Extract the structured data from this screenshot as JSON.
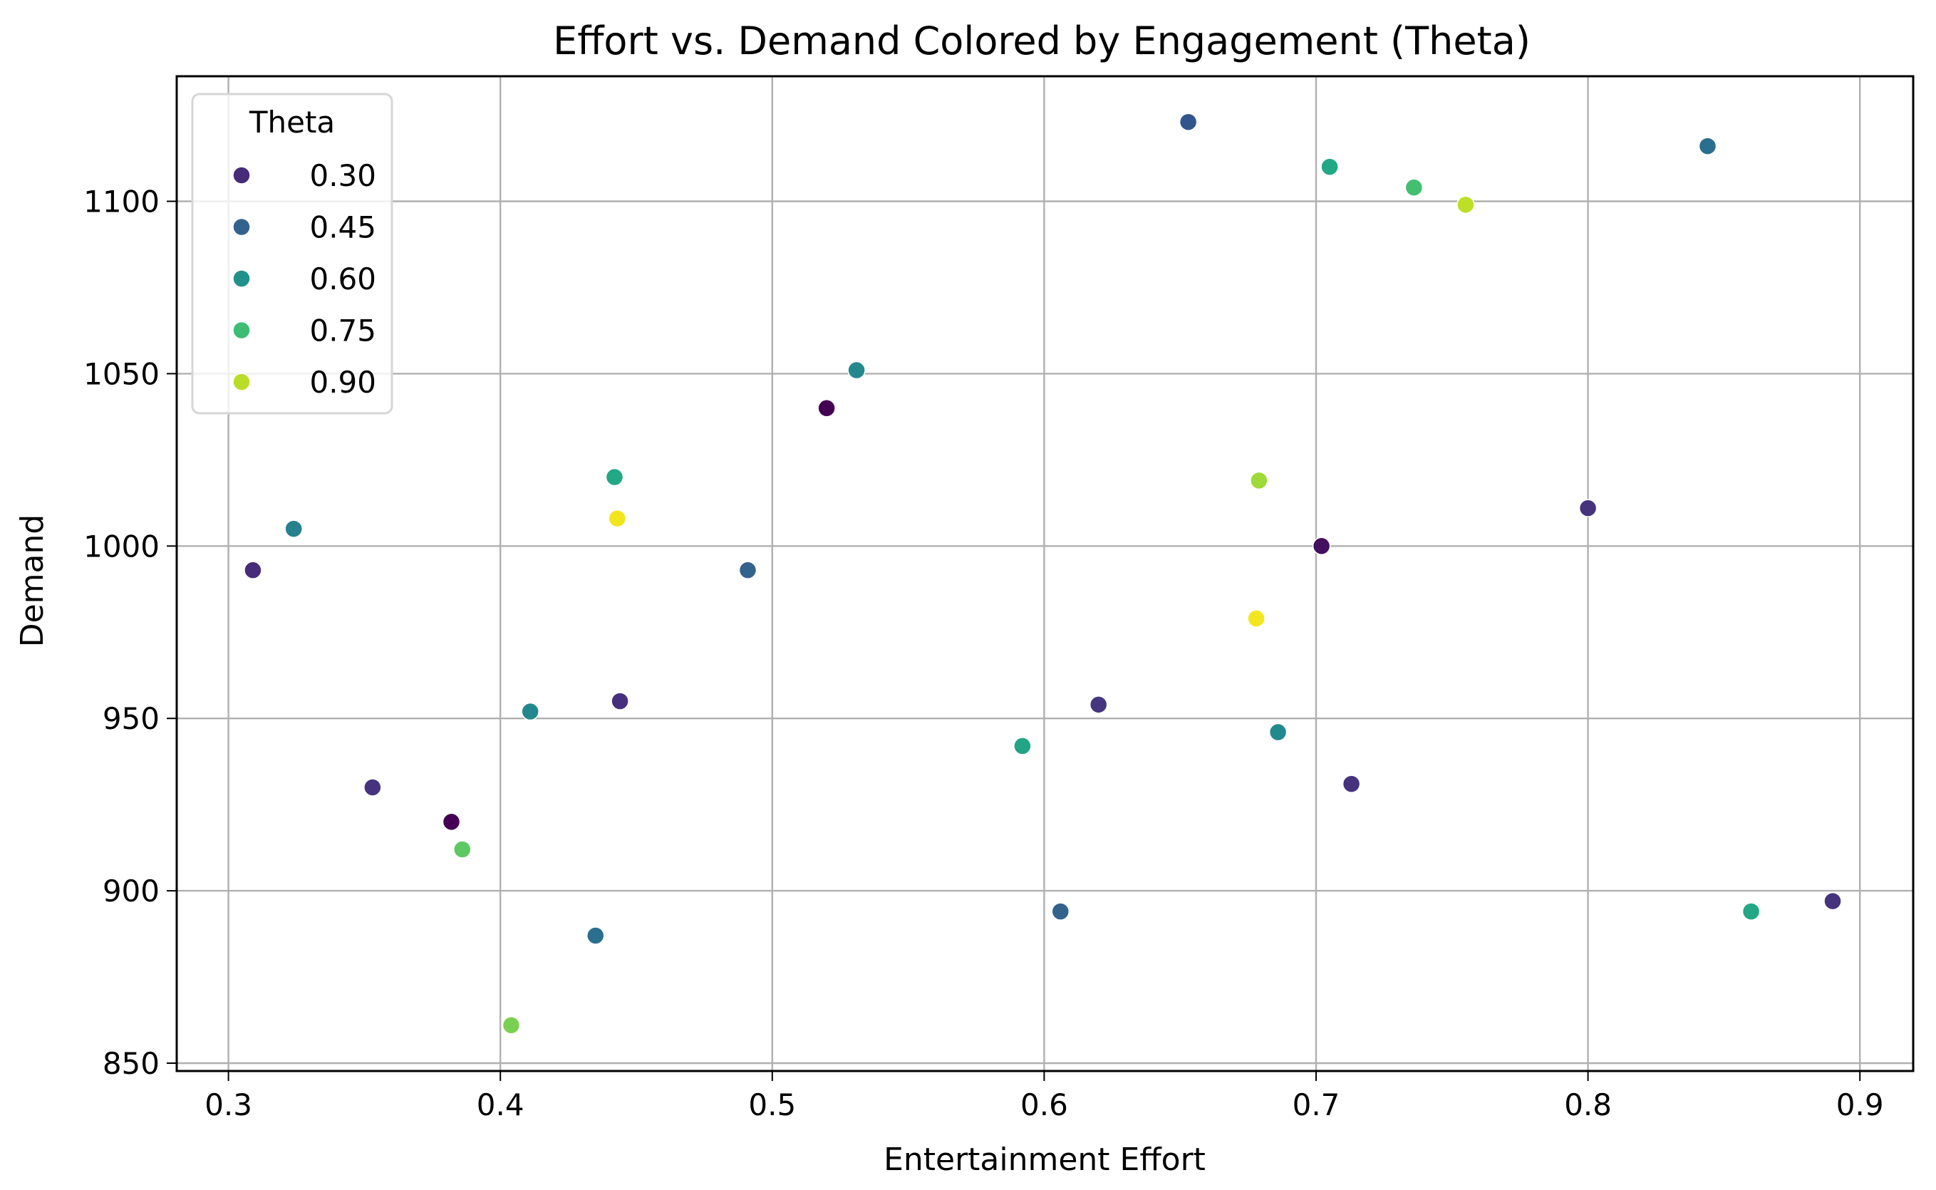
{
  "chart_data": {
    "type": "scatter",
    "title": "Effort vs. Demand Colored by Engagement (Theta)",
    "xlabel": "Entertainment Effort",
    "ylabel": "Demand",
    "xlim": [
      0.28,
      0.92
    ],
    "ylim": [
      847,
      1136
    ],
    "xticks": [
      0.3,
      0.4,
      0.5,
      0.6,
      0.7,
      0.8,
      0.9
    ],
    "xtick_labels": [
      "0.3",
      "0.4",
      "0.5",
      "0.6",
      "0.7",
      "0.8",
      "0.9"
    ],
    "yticks": [
      850,
      900,
      950,
      1000,
      1050,
      1100
    ],
    "ytick_labels": [
      "850",
      "900",
      "950",
      "1000",
      "1050",
      "1100"
    ],
    "grid": true,
    "colormap": "viridis",
    "legend": {
      "title": "Theta",
      "position": "upper left",
      "entries": [
        {
          "label": "0.30",
          "color": "#472c7a"
        },
        {
          "label": "0.45",
          "color": "#33638d"
        },
        {
          "label": "0.60",
          "color": "#21918c"
        },
        {
          "label": "0.75",
          "color": "#3dbc74"
        },
        {
          "label": "0.90",
          "color": "#bade28"
        }
      ]
    },
    "points": [
      {
        "x": 0.653,
        "y": 1123,
        "theta": 0.43,
        "color": "#31568c"
      },
      {
        "x": 0.705,
        "y": 1110,
        "theta": 0.7,
        "color": "#22a884"
      },
      {
        "x": 0.736,
        "y": 1104,
        "theta": 0.76,
        "color": "#44bf70"
      },
      {
        "x": 0.755,
        "y": 1099,
        "theta": 0.9,
        "color": "#bddf26"
      },
      {
        "x": 0.844,
        "y": 1116,
        "theta": 0.5,
        "color": "#2a6f8e"
      },
      {
        "x": 0.531,
        "y": 1051,
        "theta": 0.58,
        "color": "#22898d"
      },
      {
        "x": 0.52,
        "y": 1040,
        "theta": 0.22,
        "color": "#440154"
      },
      {
        "x": 0.442,
        "y": 1020,
        "theta": 0.7,
        "color": "#22a884"
      },
      {
        "x": 0.443,
        "y": 1008,
        "theta": 0.97,
        "color": "#f1e51d"
      },
      {
        "x": 0.324,
        "y": 1005,
        "theta": 0.55,
        "color": "#26808e"
      },
      {
        "x": 0.309,
        "y": 993,
        "theta": 0.3,
        "color": "#472c7a"
      },
      {
        "x": 0.491,
        "y": 993,
        "theta": 0.45,
        "color": "#33638d"
      },
      {
        "x": 0.679,
        "y": 1019,
        "theta": 0.86,
        "color": "#a0da39"
      },
      {
        "x": 0.8,
        "y": 1011,
        "theta": 0.32,
        "color": "#46337e"
      },
      {
        "x": 0.702,
        "y": 1000,
        "theta": 0.24,
        "color": "#440f5f"
      },
      {
        "x": 0.678,
        "y": 979,
        "theta": 0.98,
        "color": "#f4e61e"
      },
      {
        "x": 0.411,
        "y": 952,
        "theta": 0.58,
        "color": "#23888e"
      },
      {
        "x": 0.444,
        "y": 955,
        "theta": 0.31,
        "color": "#46307d"
      },
      {
        "x": 0.62,
        "y": 954,
        "theta": 0.33,
        "color": "#45367f"
      },
      {
        "x": 0.592,
        "y": 942,
        "theta": 0.68,
        "color": "#21a585"
      },
      {
        "x": 0.686,
        "y": 946,
        "theta": 0.58,
        "color": "#22898d"
      },
      {
        "x": 0.353,
        "y": 930,
        "theta": 0.32,
        "color": "#46337e"
      },
      {
        "x": 0.382,
        "y": 920,
        "theta": 0.22,
        "color": "#440154"
      },
      {
        "x": 0.386,
        "y": 912,
        "theta": 0.8,
        "color": "#5ec962"
      },
      {
        "x": 0.713,
        "y": 931,
        "theta": 0.32,
        "color": "#46337e"
      },
      {
        "x": 0.606,
        "y": 894,
        "theta": 0.45,
        "color": "#33638d"
      },
      {
        "x": 0.435,
        "y": 887,
        "theta": 0.5,
        "color": "#2b6f8e"
      },
      {
        "x": 0.404,
        "y": 861,
        "theta": 0.83,
        "color": "#7ad151"
      },
      {
        "x": 0.86,
        "y": 894,
        "theta": 0.7,
        "color": "#22a884"
      },
      {
        "x": 0.89,
        "y": 897,
        "theta": 0.32,
        "color": "#46337e"
      }
    ]
  }
}
